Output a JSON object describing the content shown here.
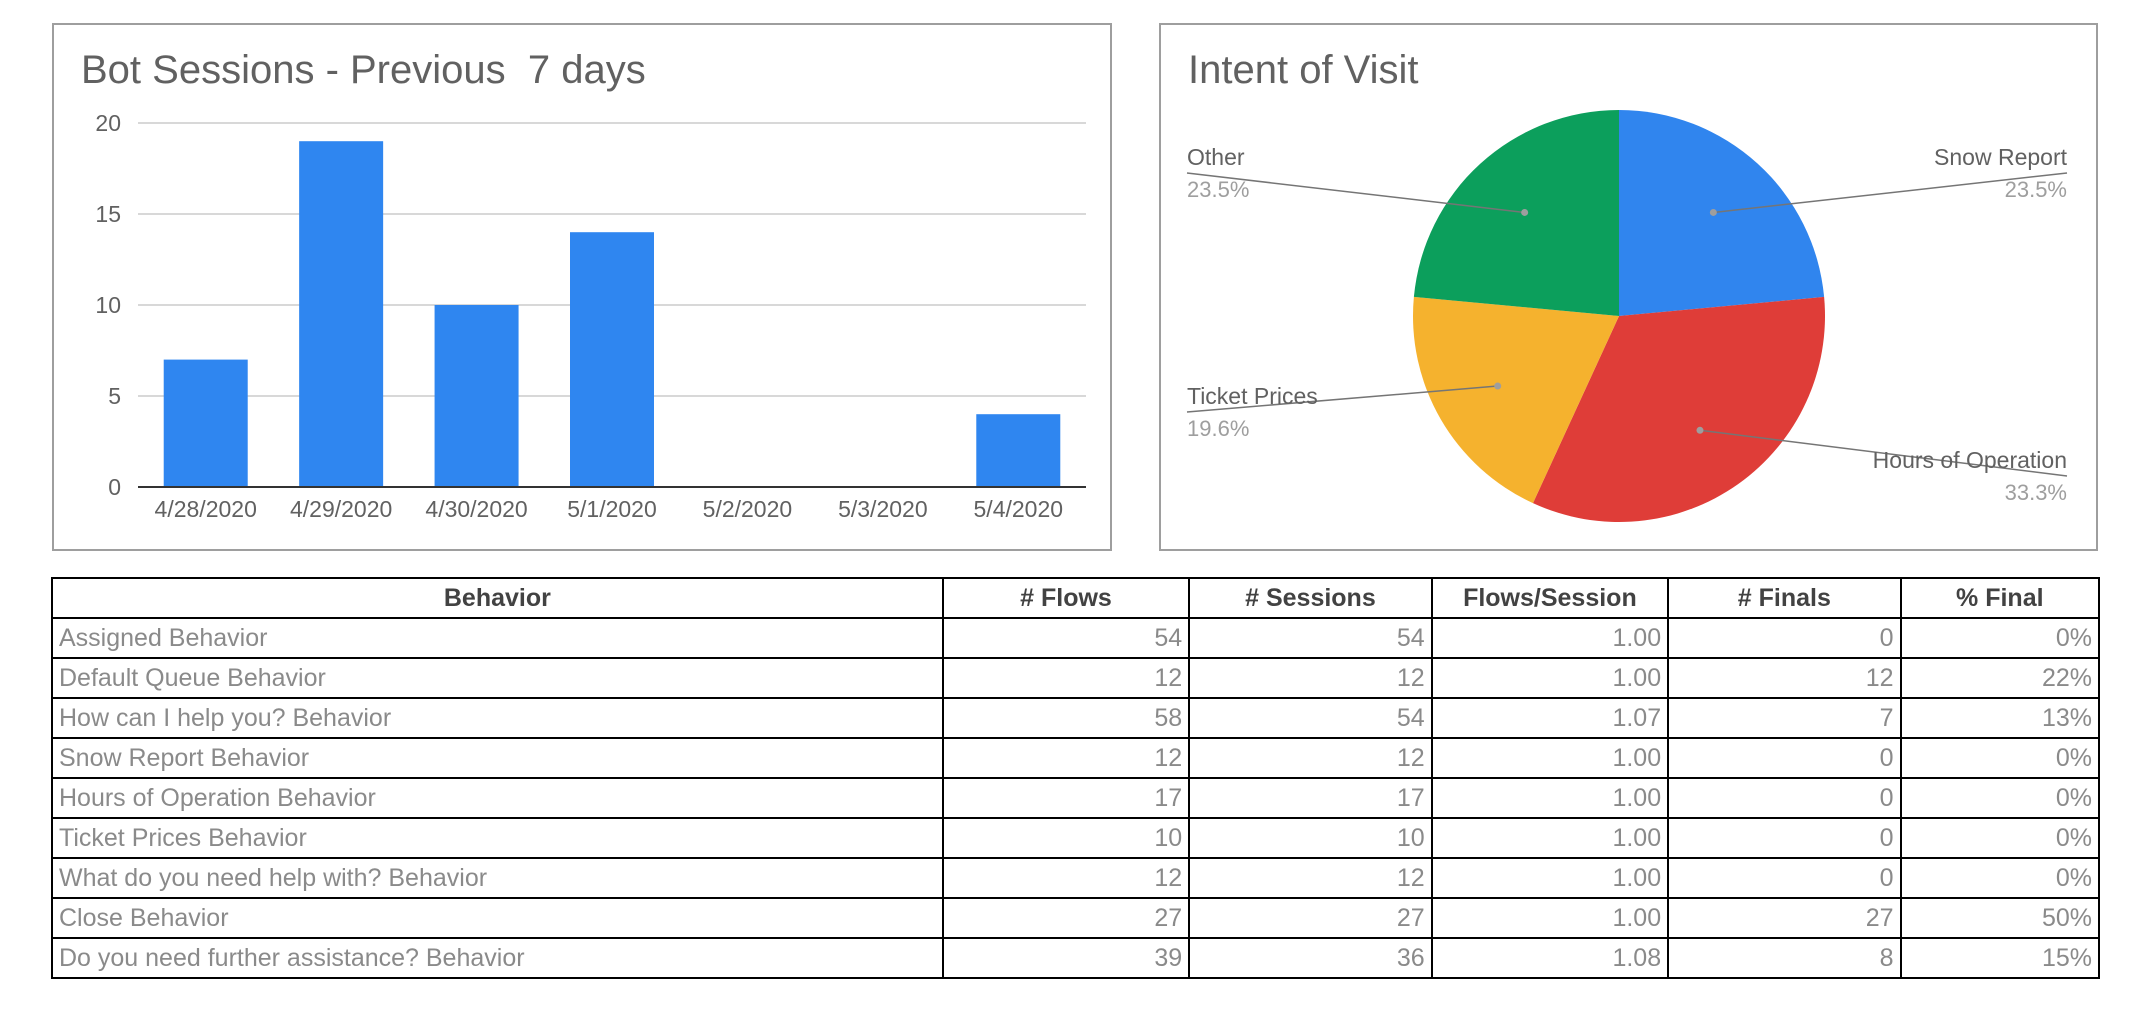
{
  "chart_data": [
    {
      "type": "bar",
      "title": "Bot Sessions - Previous  7 days",
      "categories": [
        "4/28/2020",
        "4/29/2020",
        "4/30/2020",
        "5/1/2020",
        "5/2/2020",
        "5/3/2020",
        "5/4/2020"
      ],
      "values": [
        7,
        19,
        10,
        14,
        0,
        0,
        4
      ],
      "yticks": [
        "0",
        "5",
        "10",
        "15",
        "20"
      ],
      "ylim": [
        0,
        20
      ],
      "grid": true,
      "color": "#2f86f0"
    },
    {
      "type": "pie",
      "title": "Intent of Visit",
      "slices": [
        {
          "label": "Snow Report",
          "value": 23.5,
          "pct": "23.5%",
          "color": "#3085ee"
        },
        {
          "label": "Hours of Operation",
          "value": 33.3,
          "pct": "33.3%",
          "color": "#df3d38"
        },
        {
          "label": "Ticket Prices",
          "value": 19.6,
          "pct": "19.6%",
          "color": "#f5b22e"
        },
        {
          "label": "Other",
          "value": 23.5,
          "pct": "23.5%",
          "color": "#0c9f5c"
        }
      ]
    }
  ],
  "table": {
    "headers": [
      "Behavior",
      "# Flows",
      "# Sessions",
      "Flows/Session",
      "# Finals",
      "% Final"
    ],
    "rows": [
      [
        "Assigned Behavior",
        "54",
        "54",
        "1.00",
        "0",
        "0%"
      ],
      [
        "Default Queue Behavior",
        "12",
        "12",
        "1.00",
        "12",
        "22%"
      ],
      [
        "How can I help you? Behavior",
        "58",
        "54",
        "1.07",
        "7",
        "13%"
      ],
      [
        "Snow Report Behavior",
        "12",
        "12",
        "1.00",
        "0",
        "0%"
      ],
      [
        "Hours of Operation Behavior",
        "17",
        "17",
        "1.00",
        "0",
        "0%"
      ],
      [
        "Ticket Prices Behavior",
        "10",
        "10",
        "1.00",
        "0",
        "0%"
      ],
      [
        "What do you need help with? Behavior",
        "12",
        "12",
        "1.00",
        "0",
        "0%"
      ],
      [
        "Close Behavior",
        "27",
        "27",
        "1.00",
        "27",
        "50%"
      ],
      [
        "Do you need further assistance? Behavior",
        "39",
        "36",
        "1.08",
        "8",
        "15%"
      ]
    ]
  }
}
